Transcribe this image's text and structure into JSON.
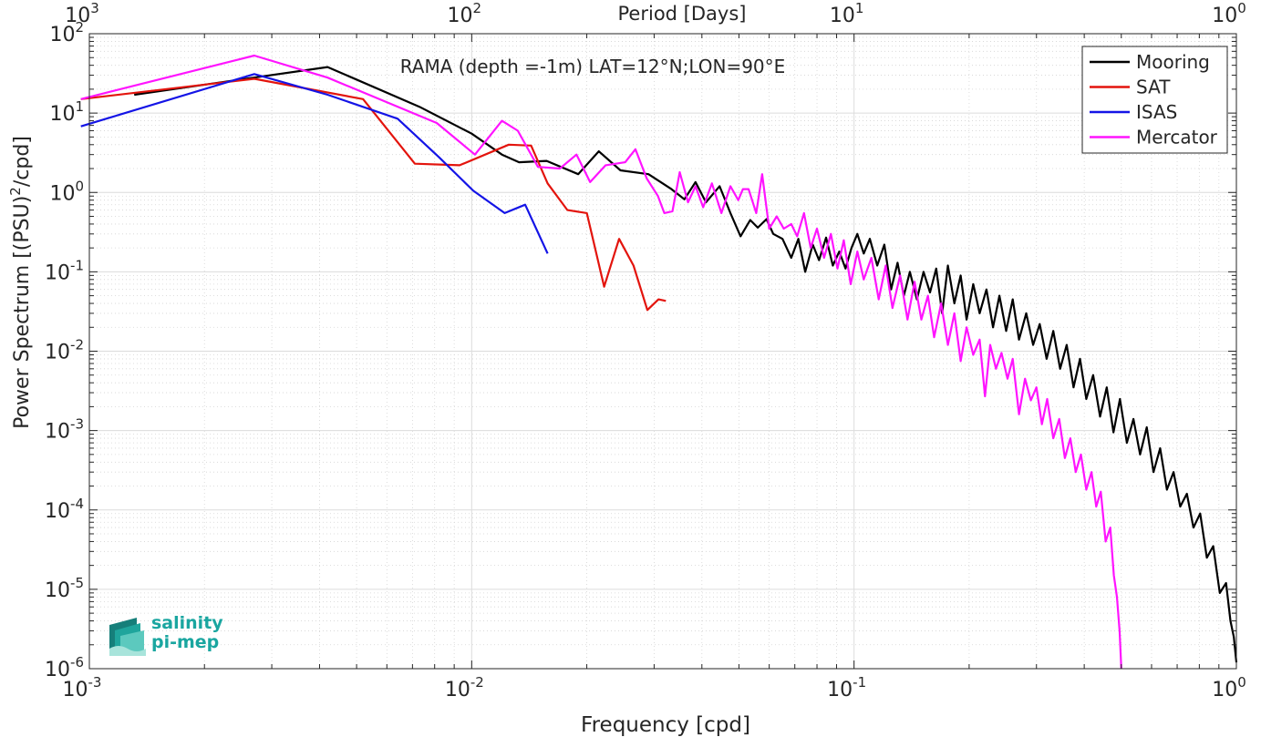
{
  "chart_data": {
    "type": "line",
    "title": "RAMA (depth =-1m) LAT=12°N;LON=90°E",
    "xlabel": "Frequency [cpd]",
    "ylabel_main": "Power Spectrum [(PSU)",
    "ylabel_sup": "2",
    "ylabel_tail": "/cpd]",
    "top_xlabel": "Period [Days]",
    "x_scale": "log",
    "y_scale": "log",
    "xlim": [
      0.001,
      1
    ],
    "ylim": [
      1e-06,
      100
    ],
    "grid": true,
    "legend_position": "top-right",
    "x_ticks": [
      {
        "base": "10",
        "exp": "-3"
      },
      {
        "base": "10",
        "exp": "-2"
      },
      {
        "base": "10",
        "exp": "-1"
      },
      {
        "base": "10",
        "exp": "0"
      }
    ],
    "top_ticks": [
      {
        "base": "10",
        "exp": "3"
      },
      {
        "base": "10",
        "exp": "2"
      },
      {
        "base": "10",
        "exp": "1"
      },
      {
        "base": "10",
        "exp": "0"
      }
    ],
    "y_ticks": [
      {
        "base": "10",
        "exp": "-6"
      },
      {
        "base": "10",
        "exp": "-5"
      },
      {
        "base": "10",
        "exp": "-4"
      },
      {
        "base": "10",
        "exp": "-3"
      },
      {
        "base": "10",
        "exp": "-2"
      },
      {
        "base": "10",
        "exp": "-1"
      },
      {
        "base": "10",
        "exp": "0"
      },
      {
        "base": "10",
        "exp": "1"
      },
      {
        "base": "10",
        "exp": "2"
      }
    ],
    "series": [
      {
        "name": "Mooring",
        "color": "#000000",
        "points": [
          [
            0.00131,
            17.0
          ],
          [
            0.0042,
            38.0
          ],
          [
            0.0073,
            12.0
          ],
          [
            0.01,
            5.5
          ],
          [
            0.012,
            3.0
          ],
          [
            0.0133,
            2.4
          ],
          [
            0.0157,
            2.5
          ],
          [
            0.019,
            1.7
          ],
          [
            0.0215,
            3.3
          ],
          [
            0.0245,
            1.9
          ],
          [
            0.029,
            1.7
          ],
          [
            0.0333,
            1.1
          ],
          [
            0.036,
            0.82
          ],
          [
            0.0385,
            1.35
          ],
          [
            0.041,
            0.75
          ],
          [
            0.0445,
            1.2
          ],
          [
            0.0475,
            0.55
          ],
          [
            0.0505,
            0.28
          ],
          [
            0.0535,
            0.45
          ],
          [
            0.056,
            0.36
          ],
          [
            0.059,
            0.46
          ],
          [
            0.0615,
            0.3
          ],
          [
            0.065,
            0.26
          ],
          [
            0.0685,
            0.15
          ],
          [
            0.0715,
            0.26
          ],
          [
            0.0745,
            0.1
          ],
          [
            0.078,
            0.22
          ],
          [
            0.081,
            0.14
          ],
          [
            0.0845,
            0.27
          ],
          [
            0.088,
            0.12
          ],
          [
            0.0915,
            0.18
          ],
          [
            0.095,
            0.11
          ],
          [
            0.0985,
            0.2
          ],
          [
            0.102,
            0.3
          ],
          [
            0.106,
            0.17
          ],
          [
            0.11,
            0.26
          ],
          [
            0.115,
            0.12
          ],
          [
            0.12,
            0.22
          ],
          [
            0.125,
            0.06
          ],
          [
            0.13,
            0.13
          ],
          [
            0.135,
            0.05
          ],
          [
            0.14,
            0.1
          ],
          [
            0.146,
            0.045
          ],
          [
            0.152,
            0.1
          ],
          [
            0.158,
            0.055
          ],
          [
            0.164,
            0.11
          ],
          [
            0.17,
            0.03
          ],
          [
            0.176,
            0.12
          ],
          [
            0.183,
            0.04
          ],
          [
            0.19,
            0.09
          ],
          [
            0.197,
            0.025
          ],
          [
            0.205,
            0.07
          ],
          [
            0.213,
            0.03
          ],
          [
            0.222,
            0.06
          ],
          [
            0.231,
            0.02
          ],
          [
            0.24,
            0.05
          ],
          [
            0.25,
            0.018
          ],
          [
            0.26,
            0.045
          ],
          [
            0.27,
            0.014
          ],
          [
            0.282,
            0.03
          ],
          [
            0.294,
            0.012
          ],
          [
            0.306,
            0.022
          ],
          [
            0.319,
            0.008
          ],
          [
            0.332,
            0.018
          ],
          [
            0.346,
            0.006
          ],
          [
            0.36,
            0.012
          ],
          [
            0.375,
            0.0035
          ],
          [
            0.39,
            0.008
          ],
          [
            0.405,
            0.0025
          ],
          [
            0.422,
            0.005
          ],
          [
            0.44,
            0.0015
          ],
          [
            0.458,
            0.0035
          ],
          [
            0.477,
            0.00095
          ],
          [
            0.496,
            0.0025
          ],
          [
            0.517,
            0.0007
          ],
          [
            0.538,
            0.0014
          ],
          [
            0.56,
            0.0005
          ],
          [
            0.583,
            0.0011
          ],
          [
            0.607,
            0.0003
          ],
          [
            0.632,
            0.0006
          ],
          [
            0.658,
            0.00018
          ],
          [
            0.685,
            0.0003
          ],
          [
            0.713,
            0.00011
          ],
          [
            0.742,
            0.00016
          ],
          [
            0.772,
            6e-05
          ],
          [
            0.804,
            9e-05
          ],
          [
            0.837,
            2.5e-05
          ],
          [
            0.87,
            3.5e-05
          ],
          [
            0.905,
            9e-06
          ],
          [
            0.94,
            1.2e-05
          ],
          [
            0.965,
            4e-06
          ],
          [
            0.985,
            2.5e-06
          ],
          [
            1.0,
            1.2e-06
          ]
        ]
      },
      {
        "name": "SAT",
        "color": "#e3140d",
        "points": [
          [
            0.00095,
            15.0
          ],
          [
            0.0027,
            27.0
          ],
          [
            0.0052,
            15.0
          ],
          [
            0.0071,
            2.3
          ],
          [
            0.0093,
            2.2
          ],
          [
            0.0125,
            4.0
          ],
          [
            0.0143,
            3.9
          ],
          [
            0.0158,
            1.3
          ],
          [
            0.0178,
            0.6
          ],
          [
            0.02,
            0.55
          ],
          [
            0.0222,
            0.065
          ],
          [
            0.0243,
            0.26
          ],
          [
            0.0265,
            0.12
          ],
          [
            0.0288,
            0.033
          ],
          [
            0.0308,
            0.045
          ],
          [
            0.0322,
            0.043
          ]
        ]
      },
      {
        "name": "ISAS",
        "color": "#1414e6",
        "points": [
          [
            0.00095,
            6.8
          ],
          [
            0.0027,
            31.0
          ],
          [
            0.0042,
            17.0
          ],
          [
            0.0064,
            8.5
          ],
          [
            0.0082,
            2.8
          ],
          [
            0.0101,
            1.05
          ],
          [
            0.0122,
            0.55
          ],
          [
            0.0138,
            0.7
          ],
          [
            0.0158,
            0.17
          ]
        ]
      },
      {
        "name": "Mercator",
        "color": "#ff14ff",
        "points": [
          [
            0.00095,
            15.0
          ],
          [
            0.0027,
            53.0
          ],
          [
            0.0042,
            28.0
          ],
          [
            0.0081,
            7.5
          ],
          [
            0.0102,
            3.0
          ],
          [
            0.012,
            8.0
          ],
          [
            0.0132,
            6.0
          ],
          [
            0.0149,
            2.1
          ],
          [
            0.017,
            2.0
          ],
          [
            0.0188,
            3.0
          ],
          [
            0.0204,
            1.35
          ],
          [
            0.0224,
            2.2
          ],
          [
            0.0252,
            2.4
          ],
          [
            0.0268,
            3.5
          ],
          [
            0.0287,
            1.5
          ],
          [
            0.0307,
            0.9
          ],
          [
            0.0319,
            0.55
          ],
          [
            0.0335,
            0.58
          ],
          [
            0.035,
            1.8
          ],
          [
            0.0368,
            0.75
          ],
          [
            0.0385,
            1.2
          ],
          [
            0.0403,
            0.65
          ],
          [
            0.0425,
            1.3
          ],
          [
            0.045,
            0.55
          ],
          [
            0.0475,
            1.2
          ],
          [
            0.0498,
            0.8
          ],
          [
            0.0512,
            1.1
          ],
          [
            0.053,
            1.1
          ],
          [
            0.0555,
            0.55
          ],
          [
            0.0575,
            1.7
          ],
          [
            0.06,
            0.35
          ],
          [
            0.0628,
            0.5
          ],
          [
            0.0655,
            0.35
          ],
          [
            0.0685,
            0.4
          ],
          [
            0.071,
            0.28
          ],
          [
            0.074,
            0.55
          ],
          [
            0.077,
            0.2
          ],
          [
            0.08,
            0.35
          ],
          [
            0.0835,
            0.15
          ],
          [
            0.087,
            0.3
          ],
          [
            0.0905,
            0.11
          ],
          [
            0.094,
            0.25
          ],
          [
            0.098,
            0.07
          ],
          [
            0.102,
            0.18
          ],
          [
            0.106,
            0.08
          ],
          [
            0.111,
            0.15
          ],
          [
            0.116,
            0.045
          ],
          [
            0.121,
            0.12
          ],
          [
            0.126,
            0.035
          ],
          [
            0.132,
            0.09
          ],
          [
            0.138,
            0.025
          ],
          [
            0.144,
            0.075
          ],
          [
            0.15,
            0.025
          ],
          [
            0.156,
            0.05
          ],
          [
            0.162,
            0.015
          ],
          [
            0.169,
            0.04
          ],
          [
            0.176,
            0.012
          ],
          [
            0.183,
            0.03
          ],
          [
            0.19,
            0.0075
          ],
          [
            0.197,
            0.02
          ],
          [
            0.205,
            0.009
          ],
          [
            0.213,
            0.014
          ],
          [
            0.22,
            0.0027
          ],
          [
            0.227,
            0.012
          ],
          [
            0.235,
            0.006
          ],
          [
            0.243,
            0.0095
          ],
          [
            0.252,
            0.0045
          ],
          [
            0.26,
            0.008
          ],
          [
            0.27,
            0.0016
          ],
          [
            0.28,
            0.0045
          ],
          [
            0.29,
            0.0024
          ],
          [
            0.3,
            0.0035
          ],
          [
            0.31,
            0.0012
          ],
          [
            0.32,
            0.0025
          ],
          [
            0.332,
            0.0008
          ],
          [
            0.344,
            0.0014
          ],
          [
            0.356,
            0.00045
          ],
          [
            0.368,
            0.0008
          ],
          [
            0.38,
            0.0003
          ],
          [
            0.392,
            0.0005
          ],
          [
            0.405,
            0.00018
          ],
          [
            0.418,
            0.0003
          ],
          [
            0.43,
            0.00011
          ],
          [
            0.442,
            0.00017
          ],
          [
            0.455,
            4e-05
          ],
          [
            0.468,
            6e-05
          ],
          [
            0.478,
            1.5e-05
          ],
          [
            0.487,
            8e-06
          ],
          [
            0.495,
            3e-06
          ],
          [
            0.5,
            1e-06
          ]
        ]
      }
    ]
  },
  "logo": {
    "line1": "salinity",
    "line2": "pi-mep"
  }
}
